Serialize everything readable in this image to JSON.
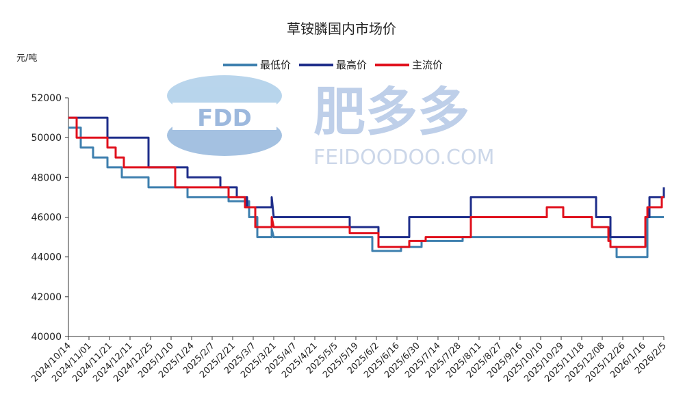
{
  "chart_data": {
    "type": "line",
    "title": "草铵膦国内市场价",
    "ylabel": "元/吨",
    "ylim": [
      40000,
      52000
    ],
    "yticks": [
      40000,
      42000,
      44000,
      46000,
      48000,
      50000,
      52000
    ],
    "x_ticks": [
      "2024/10/14",
      "2024/11/01",
      "2024/11/21",
      "2024/12/11",
      "2024/12/25",
      "2025/1/10",
      "2025/1/24",
      "2025/2/7",
      "2025/2/21",
      "2025/3/7",
      "2025/3/21",
      "2025/4/7",
      "2025/4/21",
      "2025/5/5",
      "2025/5/19",
      "2025/6/2",
      "2025/6/16",
      "2025/6/30",
      "2025/7/14",
      "2025/7/28",
      "2025/8/11",
      "2025/8/27",
      "2025/9/16",
      "2025/10/10",
      "2025/10/29",
      "2025/11/18",
      "2025/12/08",
      "2025/12/26",
      "2026/1/16",
      "2026/2/5"
    ],
    "legend_position": "top-center",
    "grid": false,
    "series": [
      {
        "name": "最低价",
        "color": "#3d7fae",
        "points": [
          [
            0,
            50500
          ],
          [
            0.6,
            50500
          ],
          [
            0.6,
            49500
          ],
          [
            1.2,
            49500
          ],
          [
            1.2,
            49000
          ],
          [
            1.9,
            49000
          ],
          [
            1.9,
            48500
          ],
          [
            2.6,
            48500
          ],
          [
            2.6,
            48000
          ],
          [
            3.9,
            48000
          ],
          [
            3.9,
            47500
          ],
          [
            5.8,
            47500
          ],
          [
            5.8,
            47000
          ],
          [
            7.8,
            47000
          ],
          [
            7.8,
            46800
          ],
          [
            8.8,
            46800
          ],
          [
            8.8,
            46000
          ],
          [
            9.2,
            46000
          ],
          [
            9.2,
            45000
          ],
          [
            9.9,
            45000
          ],
          [
            9.9,
            45400
          ],
          [
            10,
            45000
          ],
          [
            14.8,
            45000
          ],
          [
            14.8,
            44300
          ],
          [
            16.2,
            44300
          ],
          [
            16.2,
            44500
          ],
          [
            17.2,
            44500
          ],
          [
            17.2,
            44800
          ],
          [
            19.2,
            44800
          ],
          [
            19.2,
            45000
          ],
          [
            26.4,
            45000
          ],
          [
            26.4,
            44500
          ],
          [
            26.7,
            44500
          ],
          [
            26.7,
            44000
          ],
          [
            28.2,
            44000
          ],
          [
            28.2,
            46000
          ],
          [
            29,
            46000
          ]
        ]
      },
      {
        "name": "最高价",
        "color": "#1e2d8a",
        "points": [
          [
            0,
            51000
          ],
          [
            1.9,
            51000
          ],
          [
            1.9,
            50000
          ],
          [
            3.9,
            50000
          ],
          [
            3.9,
            48500
          ],
          [
            5.8,
            48500
          ],
          [
            5.8,
            48000
          ],
          [
            7.4,
            48000
          ],
          [
            7.4,
            47500
          ],
          [
            8.2,
            47500
          ],
          [
            8.2,
            47000
          ],
          [
            8.7,
            47000
          ],
          [
            8.7,
            46500
          ],
          [
            9.9,
            46500
          ],
          [
            9.9,
            47000
          ],
          [
            10,
            46000
          ],
          [
            13.7,
            46000
          ],
          [
            13.7,
            45500
          ],
          [
            15.1,
            45500
          ],
          [
            15.1,
            45000
          ],
          [
            16.6,
            45000
          ],
          [
            16.6,
            46000
          ],
          [
            19.6,
            46000
          ],
          [
            19.6,
            47000
          ],
          [
            25.7,
            47000
          ],
          [
            25.7,
            46000
          ],
          [
            26.4,
            46000
          ],
          [
            26.4,
            45000
          ],
          [
            28.1,
            45000
          ],
          [
            28.1,
            46000
          ],
          [
            28.3,
            46000
          ],
          [
            28.3,
            47000
          ],
          [
            29,
            47000
          ],
          [
            29,
            47500
          ]
        ]
      },
      {
        "name": "主流价",
        "color": "#e0101c",
        "points": [
          [
            0,
            51000
          ],
          [
            0.4,
            51000
          ],
          [
            0.4,
            50000
          ],
          [
            1.9,
            50000
          ],
          [
            1.9,
            49500
          ],
          [
            2.3,
            49500
          ],
          [
            2.3,
            49000
          ],
          [
            2.7,
            49000
          ],
          [
            2.7,
            48500
          ],
          [
            5.2,
            48500
          ],
          [
            5.2,
            47500
          ],
          [
            7.8,
            47500
          ],
          [
            7.8,
            47000
          ],
          [
            8.6,
            47000
          ],
          [
            8.6,
            46500
          ],
          [
            9.1,
            46500
          ],
          [
            9.1,
            45500
          ],
          [
            9.9,
            45500
          ],
          [
            9.9,
            46000
          ],
          [
            10,
            45500
          ],
          [
            13.7,
            45500
          ],
          [
            13.7,
            45200
          ],
          [
            15.1,
            45200
          ],
          [
            15.1,
            44500
          ],
          [
            16.6,
            44500
          ],
          [
            16.6,
            44800
          ],
          [
            17.4,
            44800
          ],
          [
            17.4,
            45000
          ],
          [
            19.6,
            45000
          ],
          [
            19.6,
            46000
          ],
          [
            23.3,
            46000
          ],
          [
            23.3,
            46500
          ],
          [
            24.1,
            46500
          ],
          [
            24.1,
            46000
          ],
          [
            25.5,
            46000
          ],
          [
            25.5,
            45500
          ],
          [
            26.3,
            45500
          ],
          [
            26.3,
            44800
          ],
          [
            26.4,
            44800
          ],
          [
            26.4,
            44500
          ],
          [
            28.1,
            44500
          ],
          [
            28.1,
            46000
          ],
          [
            28.2,
            46000
          ],
          [
            28.2,
            46500
          ],
          [
            28.9,
            46500
          ],
          [
            28.9,
            47000
          ],
          [
            29,
            47000
          ]
        ]
      }
    ]
  },
  "watermark": {
    "logo_text": "FDD",
    "brand_text": "肥多多",
    "url_text": "FEIDOODOO.COM"
  }
}
